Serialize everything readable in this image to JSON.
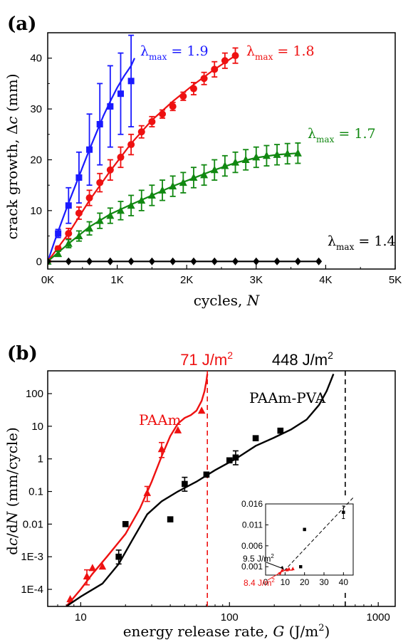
{
  "chart_data": [
    {
      "panel_label": "(a)",
      "type": "line",
      "xlabel": "cycles, N",
      "ylabel": "crack growth, Δc (mm)",
      "xlim": [
        0,
        5000
      ],
      "ylim": [
        -1.5,
        45
      ],
      "x_ticks": [
        "0K",
        "1K",
        "2K",
        "3K",
        "4K",
        "5K"
      ],
      "y_ticks": [
        "0",
        "10",
        "20",
        "30",
        "40"
      ],
      "legend": "inline labels",
      "series": [
        {
          "name": "λmax = 1.9",
          "color": "#1a1aff",
          "marker": "square",
          "x": [
            0,
            150,
            300,
            450,
            600,
            750,
            900,
            1050,
            1200
          ],
          "y": [
            0,
            5.5,
            11,
            16.5,
            22,
            27,
            30.5,
            33,
            35.5
          ],
          "err": [
            0,
            0.8,
            3.5,
            5,
            7,
            8,
            8,
            8,
            9
          ],
          "fit_x": [
            0,
            100,
            200,
            300,
            400,
            500,
            600,
            700,
            800,
            900,
            1000,
            1100,
            1200,
            1250
          ],
          "fit_y": [
            0,
            4,
            7.8,
            11.5,
            15,
            18.5,
            22,
            25.3,
            28.6,
            31.5,
            34.2,
            36.5,
            38.5,
            40
          ]
        },
        {
          "name": "λmax = 1.8",
          "color": "#ee1111",
          "marker": "circle",
          "x": [
            0,
            150,
            300,
            450,
            600,
            750,
            900,
            1050,
            1200,
            1350,
            1500,
            1650,
            1800,
            1950,
            2100,
            2250,
            2400,
            2550,
            2700
          ],
          "y": [
            0,
            2.5,
            5.5,
            9.5,
            12.5,
            15.5,
            18,
            20.5,
            23,
            25.5,
            27.5,
            29,
            30.5,
            32.5,
            34,
            36,
            37.8,
            39.5,
            40.5
          ],
          "err": [
            0,
            0.5,
            1,
            1.2,
            1.5,
            1.8,
            2,
            2,
            2,
            1.2,
            1,
            0.8,
            0.8,
            0.8,
            1.2,
            1.2,
            1.5,
            1.5,
            1.5
          ],
          "fit_x": [
            0,
            300,
            600,
            900,
            1200,
            1500,
            1800,
            2100,
            2400,
            2700
          ],
          "fit_y": [
            0,
            5.5,
            12,
            17.8,
            23.2,
            27.8,
            31.5,
            34.8,
            37.8,
            40.5
          ]
        },
        {
          "name": "λmax = 1.7",
          "color": "#118811",
          "marker": "triangle",
          "x": [
            0,
            150,
            300,
            450,
            600,
            750,
            900,
            1050,
            1200,
            1350,
            1500,
            1650,
            1800,
            1950,
            2100,
            2250,
            2400,
            2550,
            2700,
            2850,
            3000,
            3150,
            3300,
            3450,
            3600
          ],
          "y": [
            0,
            1.5,
            3.5,
            5,
            6.5,
            8,
            9,
            10,
            11,
            12,
            13,
            14,
            14.8,
            15.5,
            16.5,
            17,
            18,
            18.8,
            19.5,
            20,
            20.5,
            20.8,
            21,
            21.2,
            21.3
          ],
          "err": [
            0,
            0.5,
            0.8,
            1,
            1.3,
            1.5,
            1.5,
            1.8,
            2,
            2,
            2,
            2,
            2,
            2,
            2,
            2,
            2,
            2,
            2,
            2,
            2,
            2,
            2,
            2,
            2
          ],
          "fit_x": [
            0,
            300,
            600,
            900,
            1200,
            1500,
            1800,
            2100,
            2400,
            2700,
            3000,
            3300,
            3600
          ],
          "fit_y": [
            0,
            3.5,
            6.8,
            9.3,
            11.2,
            13,
            14.8,
            16.4,
            18,
            19.4,
            20.4,
            21,
            21.3
          ]
        },
        {
          "name": "λmax = 1.4",
          "color": "#000000",
          "marker": "diamond",
          "x": [
            0,
            300,
            600,
            900,
            1200,
            1500,
            1800,
            2100,
            2400,
            2700,
            3000,
            3300,
            3600,
            3900
          ],
          "y": [
            0,
            0,
            0,
            0,
            0,
            0,
            0,
            0,
            0,
            0,
            0,
            0,
            0,
            0
          ],
          "err": [
            0,
            0,
            0,
            0,
            0,
            0,
            0,
            0,
            0,
            0,
            0,
            0,
            0,
            0
          ],
          "fit_x": [
            0,
            3900
          ],
          "fit_y": [
            0,
            0
          ]
        }
      ]
    },
    {
      "panel_label": "(b)",
      "type": "scatter",
      "xlabel": "energy release rate, G (J/m²)",
      "ylabel": "dc/dN (mm/cycle)",
      "x_scale": "log",
      "y_scale": "log",
      "xlim": [
        6,
        1300
      ],
      "ylim": [
        3e-05,
        500
      ],
      "x_ticks": [
        "10",
        "100",
        "1000"
      ],
      "y_ticks": [
        "1E-4",
        "1E-3",
        "0.01",
        "0.1",
        "1",
        "10",
        "100"
      ],
      "annotations": [
        {
          "text": "71 J/m²",
          "x": 71,
          "color": "#ee1111"
        },
        {
          "text": "448 J/m²",
          "x": 600,
          "color": "#000000"
        }
      ],
      "series": [
        {
          "name": "PAAm",
          "color": "#ee1111",
          "marker": "triangle",
          "x": [
            8.5,
            11,
            12,
            14,
            28,
            35,
            45,
            65
          ],
          "y": [
            5e-05,
            0.00025,
            0.00045,
            0.0005,
            0.09,
            2,
            7.5,
            30
          ],
          "fit_x": [
            8,
            10,
            12,
            15,
            20,
            25,
            30,
            35,
            40,
            45,
            50,
            55,
            60,
            65,
            68,
            70,
            71
          ],
          "fit_y": [
            3e-05,
            0.0001,
            0.0003,
            0.001,
            0.005,
            0.03,
            0.2,
            1.2,
            5,
            12,
            18,
            22,
            30,
            60,
            120,
            250,
            400
          ]
        },
        {
          "name": "PAAm-PVA",
          "color": "#000000",
          "marker": "square",
          "x": [
            18,
            20,
            40,
            50,
            70,
            100,
            110,
            150,
            220
          ],
          "y": [
            0.001,
            0.01,
            0.014,
            0.17,
            0.33,
            0.9,
            1.1,
            4.3,
            7.3
          ],
          "fit_x": [
            8,
            10,
            14,
            18,
            22,
            28,
            35,
            45,
            60,
            80,
            110,
            150,
            200,
            260,
            330,
            400,
            450,
            480,
            500
          ],
          "fit_y": [
            3e-05,
            6e-05,
            0.00015,
            0.0006,
            0.003,
            0.02,
            0.05,
            0.1,
            0.2,
            0.45,
            1,
            2.5,
            4.5,
            8,
            16,
            45,
            120,
            250,
            400
          ]
        }
      ],
      "inset": {
        "xlim": [
          0,
          45
        ],
        "ylim": [
          -0.001,
          0.016
        ],
        "x_ticks": [
          "0",
          "10",
          "20",
          "30",
          "40"
        ],
        "y_ticks": [
          "0.001",
          "0.006",
          "0.011",
          "0.016"
        ],
        "annotations": [
          {
            "text": "9.5 J/m²",
            "color": "#000000"
          },
          {
            "text": "8.4 J/m²",
            "color": "#ee1111"
          }
        ],
        "black_points": [
          {
            "x": 18,
            "y": 0.001,
            "err": 0.0002
          },
          {
            "x": 20,
            "y": 0.0099,
            "err": 0.0003
          },
          {
            "x": 40,
            "y": 0.014,
            "err": 0.0015
          }
        ],
        "red_points": [
          {
            "x": 8.5,
            "y": 0.0001
          },
          {
            "x": 11,
            "y": 0.00025
          },
          {
            "x": 12,
            "y": 0.00045
          },
          {
            "x": 14,
            "y": 0.0005
          }
        ]
      }
    }
  ]
}
